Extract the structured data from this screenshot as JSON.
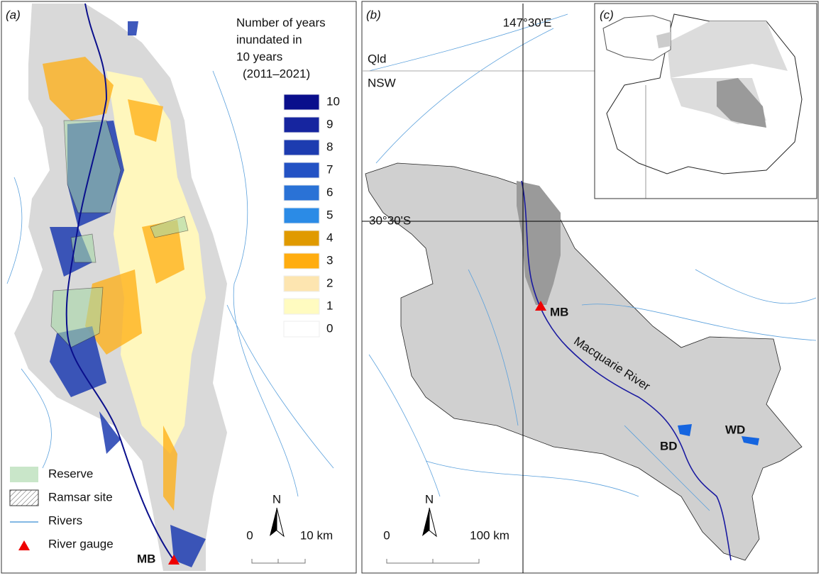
{
  "panel_a": {
    "label": "(a)",
    "legend_title": [
      "Number of years",
      "inundated in",
      "10 years",
      "(2011–2021)"
    ],
    "classes": [
      {
        "value": 10,
        "color": "#0a0f8c"
      },
      {
        "value": 9,
        "color": "#16259f"
      },
      {
        "value": 8,
        "color": "#1d3cb0"
      },
      {
        "value": 7,
        "color": "#2352c4"
      },
      {
        "value": 6,
        "color": "#2a72d6"
      },
      {
        "value": 5,
        "color": "#2b8be6"
      },
      {
        "value": 4,
        "color": "#e09a00"
      },
      {
        "value": 3,
        "color": "#ffad10"
      },
      {
        "value": 2,
        "color": "#fde5b0"
      },
      {
        "value": 1,
        "color": "#fffbc0"
      },
      {
        "value": 0,
        "color": "#ffffff"
      }
    ],
    "key": [
      "Reserve",
      "Ramsar site",
      "Rivers",
      "River gauge"
    ],
    "gauge": "MB",
    "north": "N",
    "scale": [
      "0",
      "10 km"
    ]
  },
  "panel_b": {
    "label": "(b)",
    "longitude": "147°30'E",
    "latitude": "30°30'S",
    "states": [
      "Qld",
      "NSW"
    ],
    "gauge": "MB",
    "river": "Macquarie River",
    "dams": [
      "BD",
      "WD"
    ],
    "north": "N",
    "scale": [
      "0",
      "100 km"
    ]
  },
  "panel_c": {
    "label": "(c)"
  }
}
